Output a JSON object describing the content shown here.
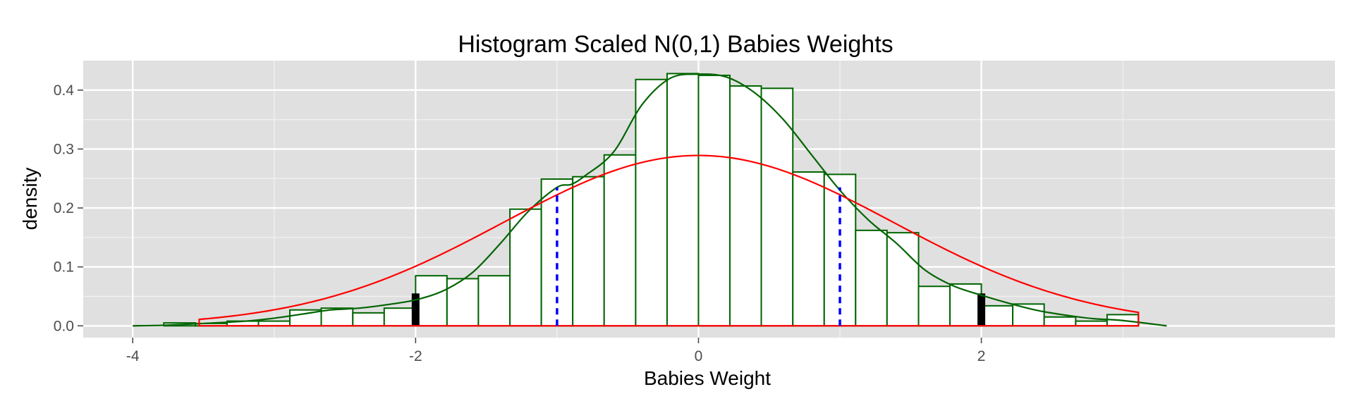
{
  "chart_data": {
    "type": "bar",
    "title": "Histogram Scaled N(0,1) Babies Weights",
    "xlabel": "Babies Weight",
    "ylabel": "density",
    "xlim": [
      -4.35,
      4.5
    ],
    "ylim": [
      -0.02,
      0.45
    ],
    "x_ticks": [
      {
        "value": -4,
        "label": "-4"
      },
      {
        "value": -2,
        "label": "-2"
      },
      {
        "value": 0,
        "label": "0"
      },
      {
        "value": 2,
        "label": "2"
      }
    ],
    "y_ticks": [
      {
        "value": 0.0,
        "label": "0.0"
      },
      {
        "value": 0.1,
        "label": "0.1"
      },
      {
        "value": 0.2,
        "label": "0.2"
      },
      {
        "value": 0.3,
        "label": "0.3"
      },
      {
        "value": 0.4,
        "label": "0.4"
      }
    ],
    "grid": true,
    "colors": {
      "panel": "#e0e0e0",
      "grid": "#ffffff",
      "bar_fill": "#ffffff",
      "bar_outline": "#006400",
      "density_curve": "#006400",
      "normal_curve": "#ff0000",
      "sd_lines": "#0000ff",
      "two_sd_markers": "#000000"
    },
    "bin_width": 0.222,
    "bins": [
      {
        "x0": -3.78,
        "x1": -3.556,
        "density": 0.005
      },
      {
        "x0": -3.556,
        "x1": -3.333,
        "density": 0.004
      },
      {
        "x0": -3.333,
        "x1": -3.111,
        "density": 0.008
      },
      {
        "x0": -3.111,
        "x1": -2.889,
        "density": 0.008
      },
      {
        "x0": -2.889,
        "x1": -2.667,
        "density": 0.027
      },
      {
        "x0": -2.667,
        "x1": -2.444,
        "density": 0.03
      },
      {
        "x0": -2.444,
        "x1": -2.222,
        "density": 0.022
      },
      {
        "x0": -2.222,
        "x1": -2.0,
        "density": 0.03
      },
      {
        "x0": -2.0,
        "x1": -1.778,
        "density": 0.085
      },
      {
        "x0": -1.778,
        "x1": -1.556,
        "density": 0.08
      },
      {
        "x0": -1.556,
        "x1": -1.333,
        "density": 0.085
      },
      {
        "x0": -1.333,
        "x1": -1.111,
        "density": 0.198
      },
      {
        "x0": -1.111,
        "x1": -0.889,
        "density": 0.249
      },
      {
        "x0": -0.889,
        "x1": -0.667,
        "density": 0.253
      },
      {
        "x0": -0.667,
        "x1": -0.444,
        "density": 0.29
      },
      {
        "x0": -0.444,
        "x1": -0.222,
        "density": 0.418
      },
      {
        "x0": -0.222,
        "x1": 0.0,
        "density": 0.428
      },
      {
        "x0": 0.0,
        "x1": 0.222,
        "density": 0.425
      },
      {
        "x0": 0.222,
        "x1": 0.444,
        "density": 0.407
      },
      {
        "x0": 0.444,
        "x1": 0.667,
        "density": 0.403
      },
      {
        "x0": 0.667,
        "x1": 0.889,
        "density": 0.261
      },
      {
        "x0": 0.889,
        "x1": 1.111,
        "density": 0.257
      },
      {
        "x0": 1.111,
        "x1": 1.333,
        "density": 0.162
      },
      {
        "x0": 1.333,
        "x1": 1.556,
        "density": 0.158
      },
      {
        "x0": 1.556,
        "x1": 1.778,
        "density": 0.067
      },
      {
        "x0": 1.778,
        "x1": 2.0,
        "density": 0.071
      },
      {
        "x0": 2.0,
        "x1": 2.222,
        "density": 0.034
      },
      {
        "x0": 2.222,
        "x1": 2.444,
        "density": 0.037
      },
      {
        "x0": 2.444,
        "x1": 2.667,
        "density": 0.015
      },
      {
        "x0": 2.667,
        "x1": 2.889,
        "density": 0.008
      },
      {
        "x0": 2.889,
        "x1": 3.111,
        "density": 0.019
      }
    ],
    "density_curve": {
      "x": [
        -4.0,
        -3.78,
        -3.5,
        -3.2,
        -3.0,
        -2.8,
        -2.6,
        -2.4,
        -2.2,
        -2.0,
        -1.8,
        -1.6,
        -1.4,
        -1.2,
        -1.0,
        -0.9,
        -0.8,
        -0.6,
        -0.4,
        -0.2,
        0.0,
        0.2,
        0.4,
        0.6,
        0.8,
        1.0,
        1.2,
        1.4,
        1.6,
        1.8,
        2.0,
        2.2,
        2.4,
        2.6,
        2.8,
        3.0,
        3.31
      ],
      "y": [
        0.0,
        0.001,
        0.004,
        0.008,
        0.013,
        0.02,
        0.027,
        0.03,
        0.036,
        0.044,
        0.06,
        0.09,
        0.14,
        0.195,
        0.235,
        0.24,
        0.255,
        0.295,
        0.375,
        0.42,
        0.427,
        0.422,
        0.395,
        0.35,
        0.29,
        0.23,
        0.18,
        0.14,
        0.095,
        0.068,
        0.052,
        0.038,
        0.026,
        0.018,
        0.012,
        0.009,
        0.0
      ]
    },
    "normal_curve": {
      "mean": 0.0,
      "sd": 1.38,
      "x_range": [
        -3.53,
        3.11
      ]
    },
    "sd_lines": [
      -1,
      1
    ],
    "two_sd_markers": {
      "x": [
        -2,
        2
      ],
      "height": 0.055
    }
  }
}
